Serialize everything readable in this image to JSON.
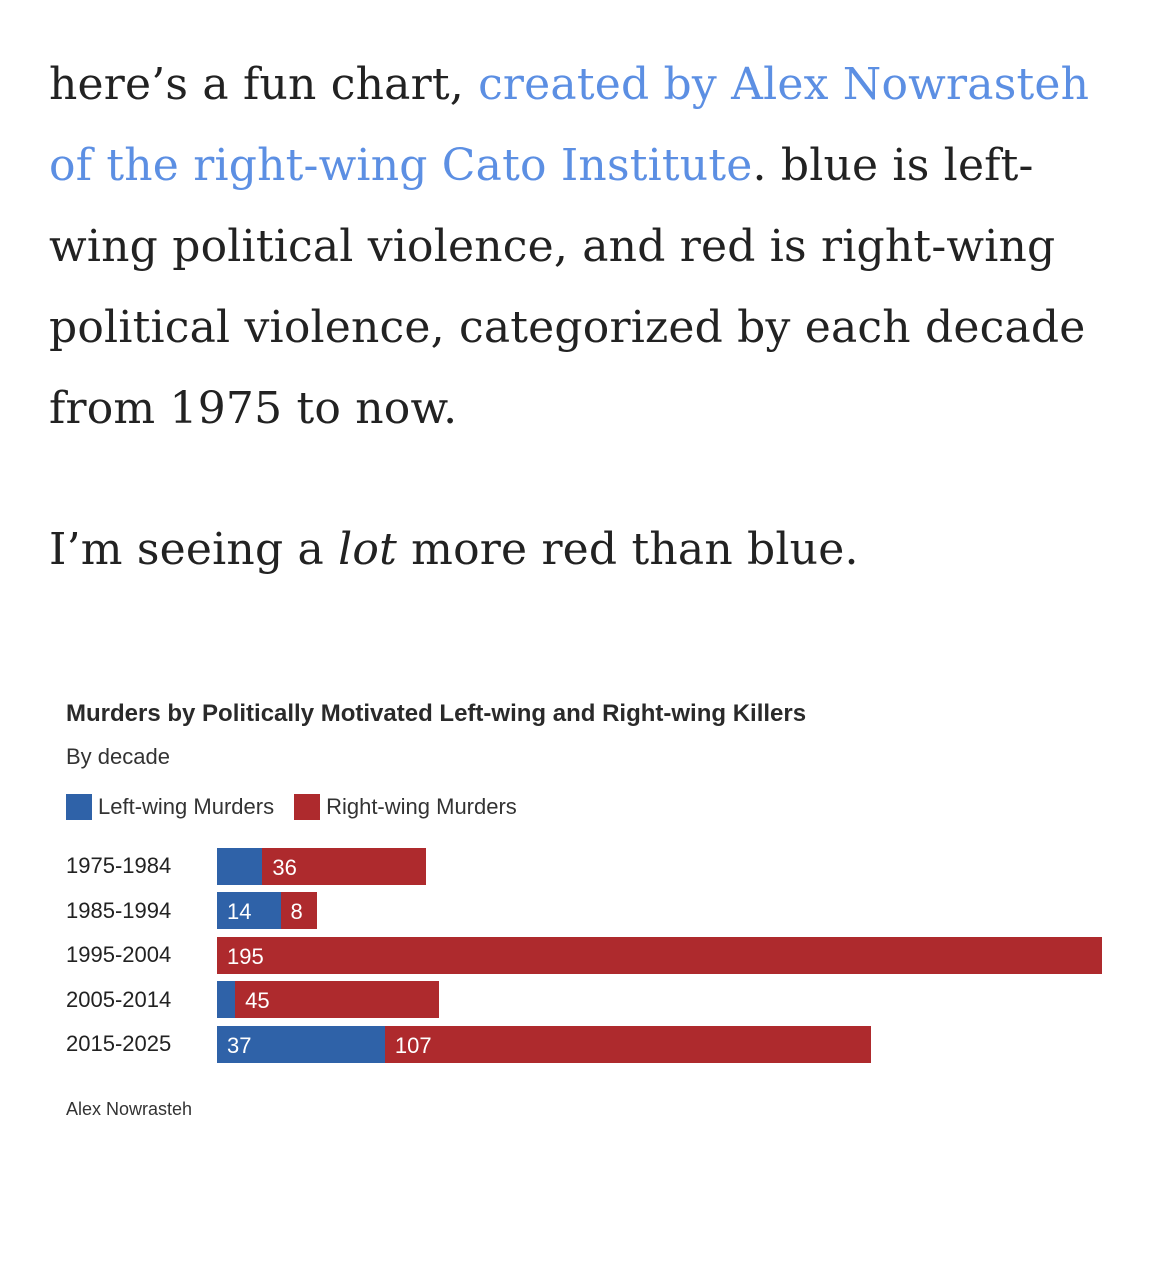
{
  "prose": {
    "p1_before": "here’s a fun chart, ",
    "p1_link": "created by Alex Nowrasteh of the right-wing Cato Institute",
    "p1_after": ". blue is left-wing political violence, and red is right-wing political violence, categorized by each decade from 1975 to now.",
    "p2_before": "I’m seeing a ",
    "p2_em": "lot",
    "p2_after": " more red than blue."
  },
  "colors": {
    "left": "#2f62a8",
    "right": "#ae2a2d",
    "link": "#5c8fe3"
  },
  "chart_data": {
    "type": "bar",
    "stacked": true,
    "orientation": "horizontal",
    "title": "Murders by Politically Motivated Left-wing and Right-wing Killers",
    "subtitle": "By decade",
    "source": "Alex Nowrasteh",
    "legend": [
      "Left-wing Murders",
      "Right-wing Murders"
    ],
    "categories": [
      "1975-1984",
      "1985-1994",
      "1995-2004",
      "2005-2014",
      "2015-2025"
    ],
    "series": [
      {
        "name": "Left-wing Murders",
        "values": [
          10,
          14,
          0,
          4,
          37
        ],
        "labels": [
          "",
          "14",
          "",
          "",
          "37"
        ]
      },
      {
        "name": "Right-wing Murders",
        "values": [
          36,
          8,
          195,
          45,
          107
        ],
        "labels": [
          "36",
          "8",
          "195",
          "45",
          "107"
        ]
      }
    ],
    "xlim": [
      0,
      195
    ]
  }
}
